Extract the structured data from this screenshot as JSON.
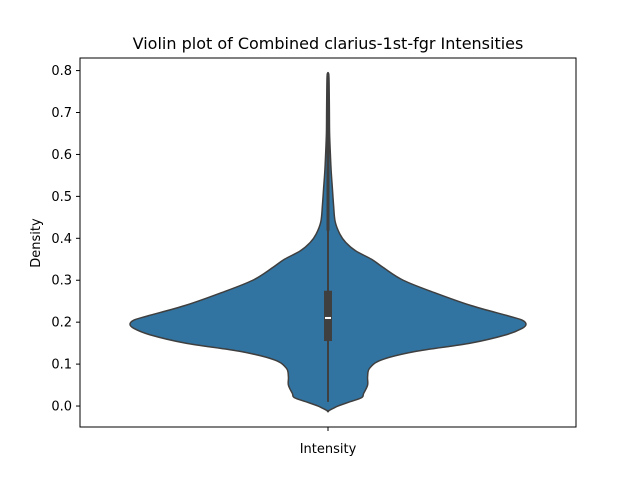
{
  "chart_data": {
    "type": "violin",
    "title": "Violin plot of Combined clarius-1st-fgr Intensities",
    "xlabel": "",
    "ylabel": "Density",
    "categories": [
      "Intensity"
    ],
    "ylim": [
      -0.05,
      0.83
    ],
    "yticks": [
      0.0,
      0.1,
      0.2,
      0.3,
      0.4,
      0.5,
      0.6,
      0.7,
      0.8
    ],
    "ytick_labels": [
      "0.0",
      "0.1",
      "0.2",
      "0.3",
      "0.4",
      "0.5",
      "0.6",
      "0.7",
      "0.8"
    ],
    "grid": false,
    "colors": {
      "violin_fill": "#3274a1",
      "violin_edge": "#3f3f3f",
      "box": "#3f3f3f",
      "median": "#ffffff",
      "axes": "#000000"
    },
    "violin": {
      "min": -0.01,
      "max": 0.79,
      "whisker_low": 0.01,
      "whisker_high": 0.42,
      "q1": 0.155,
      "median": 0.21,
      "q3": 0.275,
      "density_profile": [
        [
          -0.012,
          0.0
        ],
        [
          0.0,
          0.05
        ],
        [
          0.01,
          0.11
        ],
        [
          0.02,
          0.17
        ],
        [
          0.03,
          0.18
        ],
        [
          0.05,
          0.2
        ],
        [
          0.07,
          0.2
        ],
        [
          0.09,
          0.21
        ],
        [
          0.11,
          0.27
        ],
        [
          0.13,
          0.44
        ],
        [
          0.15,
          0.72
        ],
        [
          0.17,
          0.9
        ],
        [
          0.185,
          0.98
        ],
        [
          0.195,
          1.0
        ],
        [
          0.205,
          0.98
        ],
        [
          0.215,
          0.91
        ],
        [
          0.24,
          0.72
        ],
        [
          0.27,
          0.54
        ],
        [
          0.3,
          0.38
        ],
        [
          0.33,
          0.28
        ],
        [
          0.35,
          0.22
        ],
        [
          0.37,
          0.14
        ],
        [
          0.39,
          0.09
        ],
        [
          0.41,
          0.06
        ],
        [
          0.44,
          0.036
        ],
        [
          0.48,
          0.028
        ],
        [
          0.52,
          0.022
        ],
        [
          0.56,
          0.016
        ],
        [
          0.6,
          0.012
        ],
        [
          0.65,
          0.008
        ],
        [
          0.7,
          0.007
        ],
        [
          0.75,
          0.006
        ],
        [
          0.79,
          0.004
        ]
      ]
    }
  }
}
